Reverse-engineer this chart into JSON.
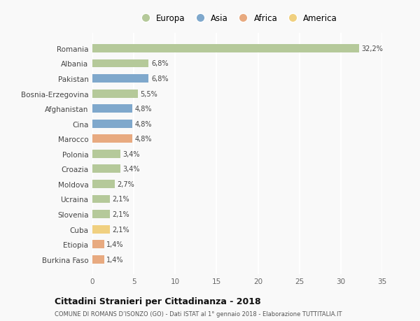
{
  "countries": [
    "Romania",
    "Albania",
    "Pakistan",
    "Bosnia-Erzegovina",
    "Afghanistan",
    "Cina",
    "Marocco",
    "Polonia",
    "Croazia",
    "Moldova",
    "Ucraina",
    "Slovenia",
    "Cuba",
    "Etiopia",
    "Burkina Faso"
  ],
  "values": [
    32.2,
    6.8,
    6.8,
    5.5,
    4.8,
    4.8,
    4.8,
    3.4,
    3.4,
    2.7,
    2.1,
    2.1,
    2.1,
    1.4,
    1.4
  ],
  "labels": [
    "32,2%",
    "6,8%",
    "6,8%",
    "5,5%",
    "4,8%",
    "4,8%",
    "4,8%",
    "3,4%",
    "3,4%",
    "2,7%",
    "2,1%",
    "2,1%",
    "2,1%",
    "1,4%",
    "1,4%"
  ],
  "continents": [
    "Europa",
    "Europa",
    "Asia",
    "Europa",
    "Asia",
    "Asia",
    "Africa",
    "Europa",
    "Europa",
    "Europa",
    "Europa",
    "Europa",
    "America",
    "Africa",
    "Africa"
  ],
  "continent_colors": {
    "Europa": "#b5c99a",
    "Asia": "#7fa8cc",
    "Africa": "#e8aa80",
    "America": "#f0d080"
  },
  "legend_order": [
    "Europa",
    "Asia",
    "Africa",
    "America"
  ],
  "title": "Cittadini Stranieri per Cittadinanza - 2018",
  "subtitle": "COMUNE DI ROMANS D’ISONZO (GO) - Dati ISTAT al 1° gennaio 2018 - Elaborazione TUTTITALIA.IT",
  "xlim": [
    0,
    35
  ],
  "xticks": [
    0,
    5,
    10,
    15,
    20,
    25,
    30,
    35
  ],
  "background_color": "#f9f9f9",
  "grid_color": "#ffffff",
  "bar_height": 0.55
}
